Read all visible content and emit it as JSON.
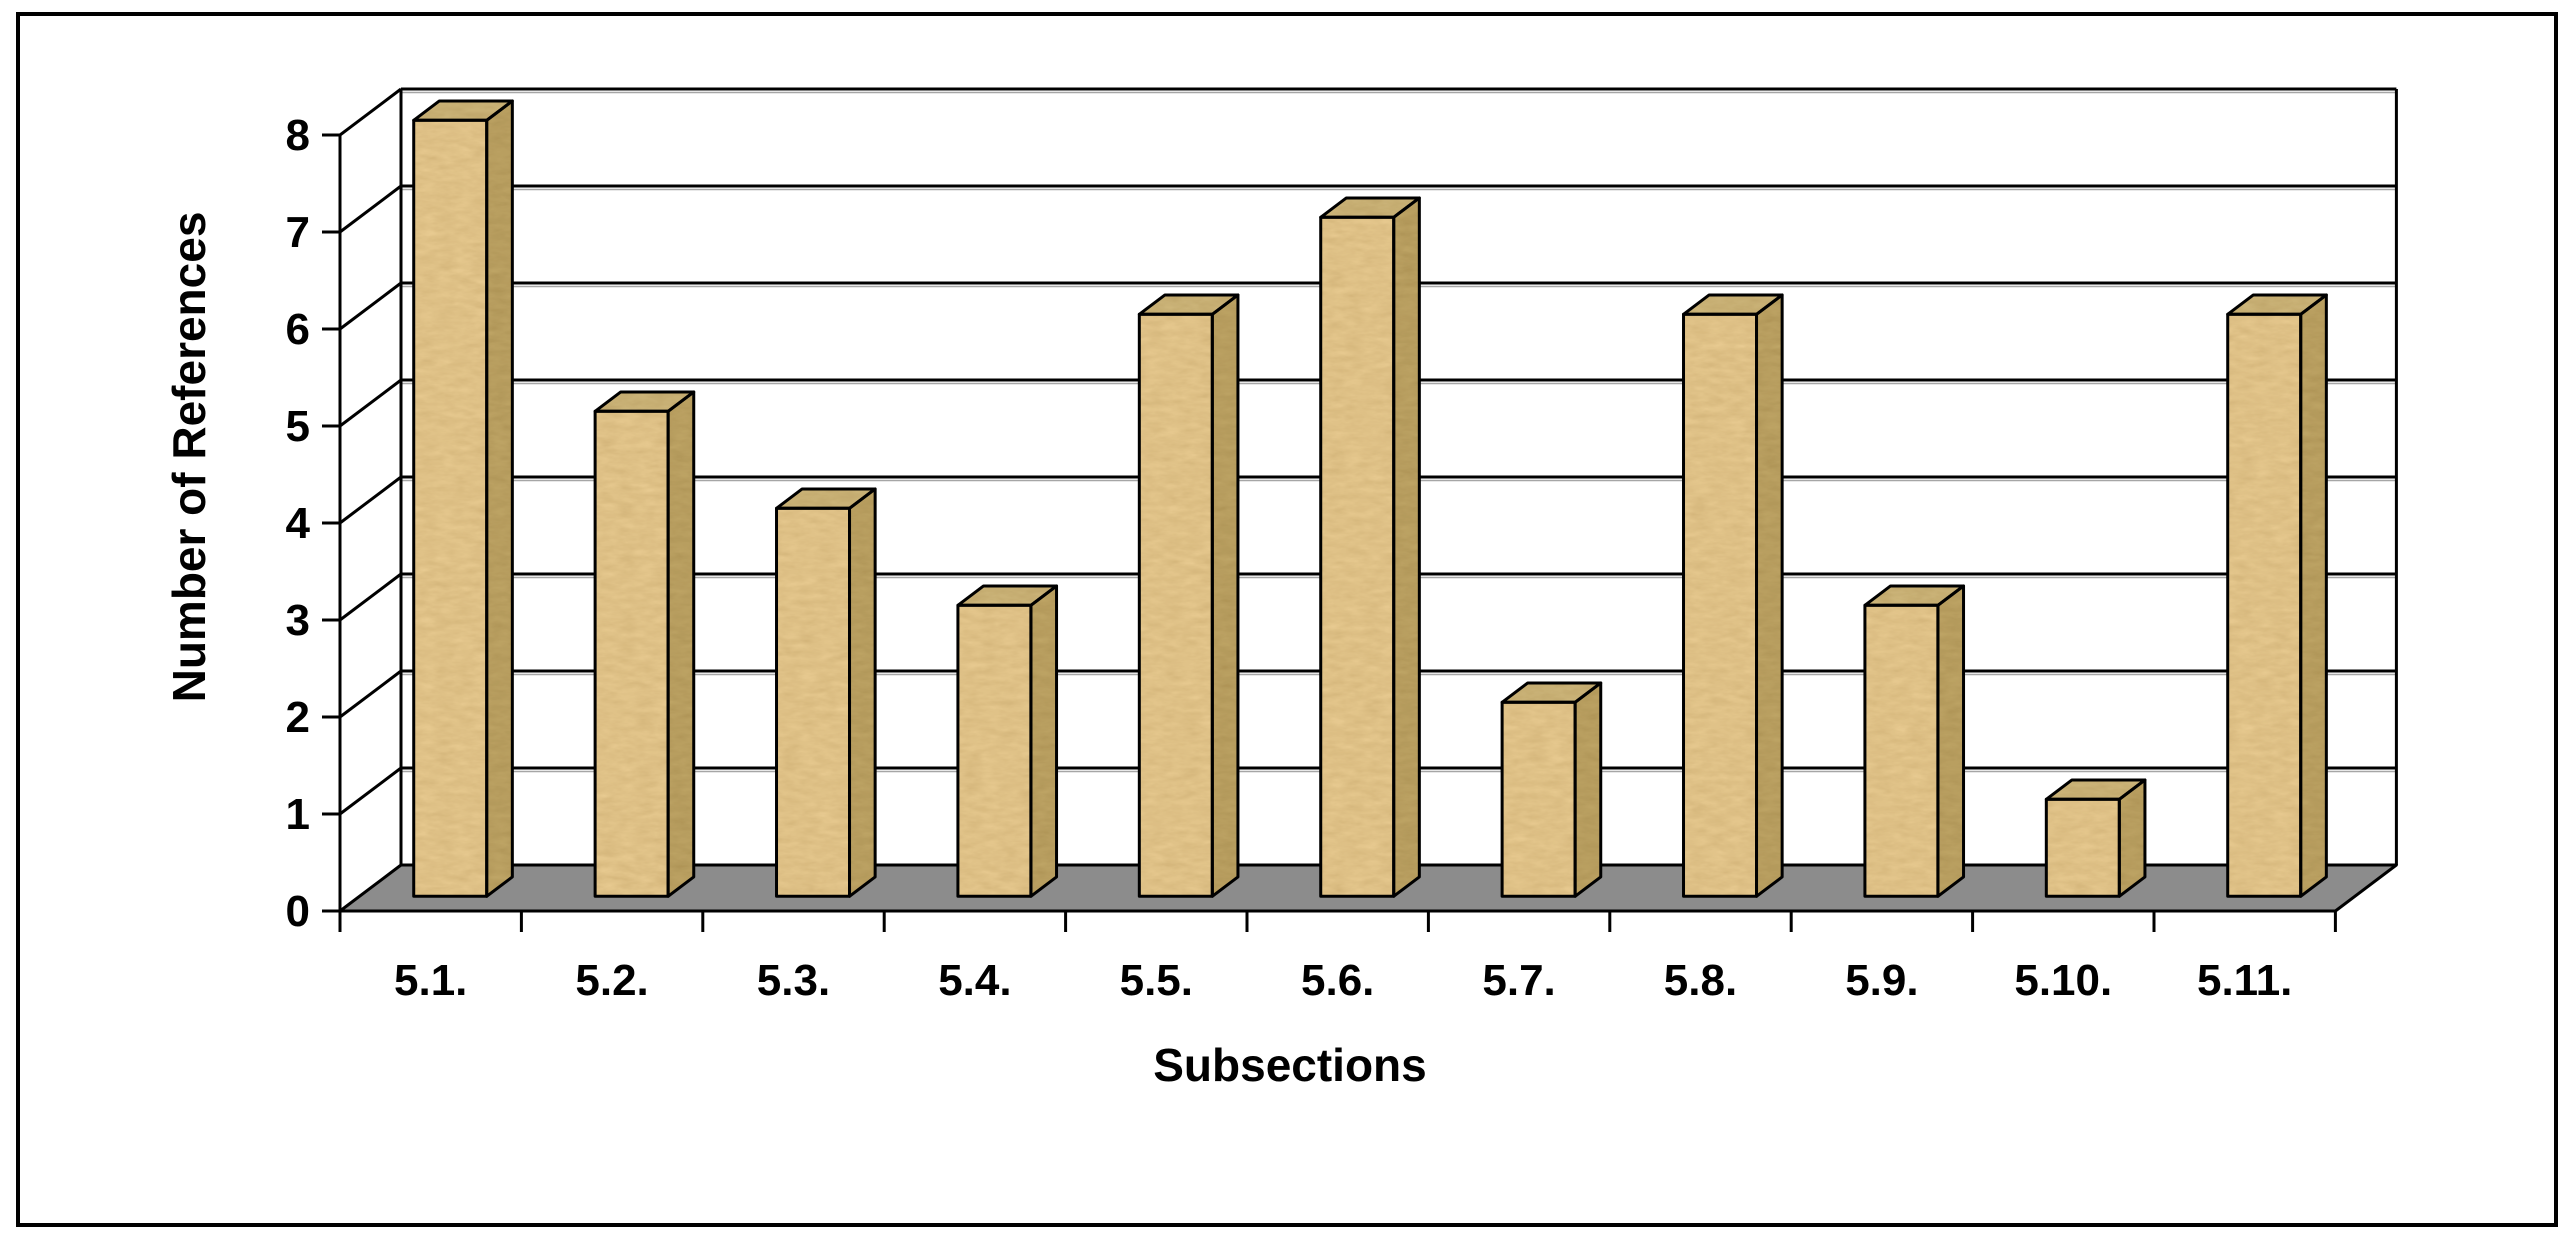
{
  "chart_data": {
    "type": "bar",
    "variant": "3d-column",
    "title": "",
    "xlabel": "Subsections",
    "ylabel": "Number of References",
    "categories": [
      "5.1.",
      "5.2.",
      "5.3.",
      "5.4.",
      "5.5.",
      "5.6.",
      "5.7.",
      "5.8.",
      "5.9.",
      "5.10.",
      "5.11."
    ],
    "values": [
      8,
      5,
      4,
      3,
      6,
      7,
      2,
      6,
      3,
      1,
      6
    ],
    "ylim": [
      0,
      8
    ],
    "ytick_step": 1,
    "ytick_labels": [
      "0",
      "1",
      "2",
      "3",
      "4",
      "5",
      "6",
      "7",
      "8"
    ],
    "grid": true,
    "legend_position": "none",
    "colors": {
      "bar_front": "#EDD096",
      "bar_side": "#C3AA6A",
      "bar_top": "#D4BD81",
      "bar_outline": "#000000",
      "floor": "#8C8C8C",
      "gridline": "#000000",
      "grid_shadow": "#A6A6A6",
      "wall": "#FFFFFF",
      "background": "#FFFFFF",
      "border": "#000000",
      "text": "#000000"
    }
  }
}
